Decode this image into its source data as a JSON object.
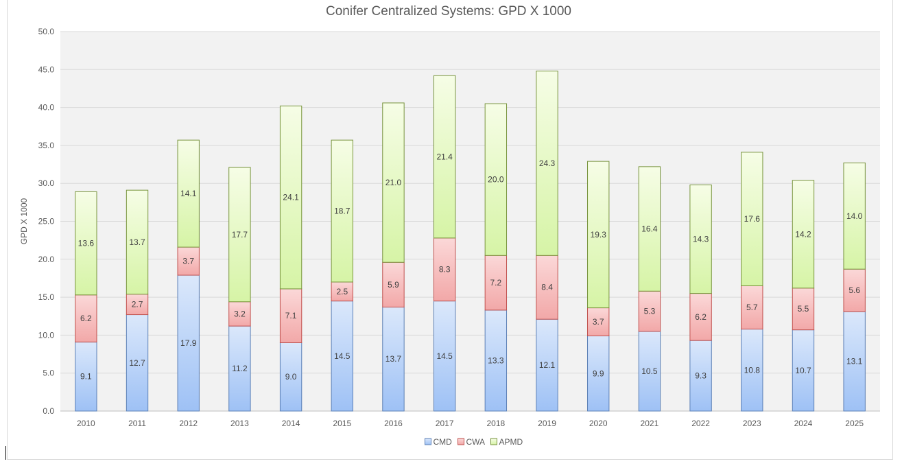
{
  "chart_data": {
    "type": "bar",
    "stacked": true,
    "title": "Conifer Centralized Systems: GPD X 1000",
    "xlabel": "",
    "ylabel": "GPD X 1000",
    "ylim": [
      0,
      50
    ],
    "ytick_step": 5,
    "grid": true,
    "legend_position": "bottom-center",
    "categories": [
      "2010",
      "2011",
      "2012",
      "2013",
      "2014",
      "2015",
      "2016",
      "2017",
      "2018",
      "2019",
      "2020",
      "2021",
      "2022",
      "2023",
      "2024",
      "2025"
    ],
    "series": [
      {
        "name": "CMD",
        "values": [
          9.1,
          12.7,
          17.9,
          11.2,
          9.0,
          14.5,
          13.7,
          14.5,
          13.3,
          12.1,
          9.9,
          10.5,
          9.3,
          10.8,
          10.7,
          13.1
        ]
      },
      {
        "name": "CWA",
        "values": [
          6.2,
          2.7,
          3.7,
          3.2,
          7.1,
          2.5,
          5.9,
          8.3,
          7.2,
          8.4,
          3.7,
          5.3,
          6.2,
          5.7,
          5.5,
          5.6
        ]
      },
      {
        "name": "APMD",
        "values": [
          13.6,
          13.7,
          14.1,
          17.7,
          24.1,
          18.7,
          21.0,
          21.4,
          20.0,
          24.3,
          19.3,
          16.4,
          14.3,
          17.6,
          14.2,
          14.0
        ]
      }
    ],
    "colors": {
      "CMD": {
        "top": "#dbe8fb",
        "bottom": "#9ec1f5",
        "stroke": "#5b7fb5"
      },
      "CWA": {
        "top": "#fbd8d8",
        "bottom": "#f2a8a8",
        "stroke": "#c0504d"
      },
      "APMD": {
        "top": "#f6fde6",
        "bottom": "#d6f4a6",
        "stroke": "#77933c"
      },
      "plot_bg": "#f2f2f2",
      "grid": "#d9d9d9"
    }
  }
}
